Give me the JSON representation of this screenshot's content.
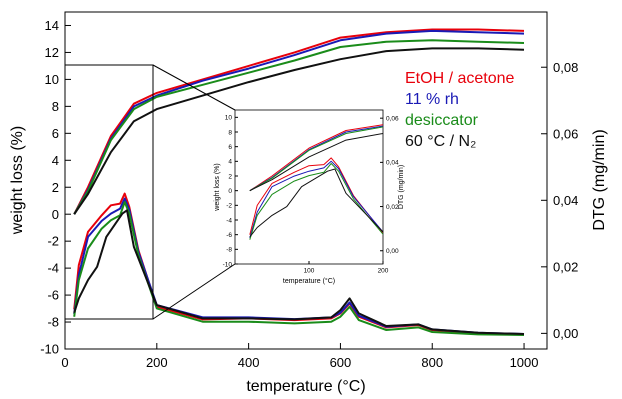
{
  "chart_data": {
    "type": "line",
    "xlabel": "temperature (°C)",
    "ylabel_left": "weight loss (%)",
    "ylabel_right": "DTG (mg/min)",
    "xlim": [
      0,
      1050
    ],
    "ylim_left": [
      -10,
      15
    ],
    "ylim_right": [
      -0.0047,
      0.0966
    ],
    "xticks": [
      "0",
      "200",
      "400",
      "600",
      "800",
      "1000"
    ],
    "yticks_left": [
      "-10",
      "-8",
      "-6",
      "-4",
      "-2",
      "0",
      "2",
      "4",
      "6",
      "8",
      "10",
      "12",
      "14"
    ],
    "yticks_right": [
      "0,00",
      "0,02",
      "0,04",
      "0,06",
      "0,08"
    ],
    "legend_placement": "right",
    "series": [
      {
        "name": "EtOH / acetone",
        "color": "#e8000b",
        "weight_loss": {
          "x": [
            20,
            50,
            100,
            150,
            200,
            300,
            400,
            500,
            600,
            700,
            800,
            900,
            1000
          ],
          "y": [
            0.0,
            2.0,
            5.8,
            8.2,
            9.0,
            10.0,
            11.0,
            12.0,
            13.1,
            13.5,
            13.7,
            13.7,
            13.6
          ]
        },
        "dtg": {
          "x": [
            20,
            30,
            50,
            80,
            100,
            120,
            130,
            140,
            160,
            200,
            300,
            400,
            500,
            580,
            600,
            620,
            640,
            700,
            770,
            800,
            900,
            1000
          ],
          "y": [
            0.0072,
            0.0205,
            0.0305,
            0.0355,
            0.0385,
            0.039,
            0.042,
            0.038,
            0.025,
            0.008,
            0.0042,
            0.0045,
            0.004,
            0.0045,
            0.006,
            0.009,
            0.005,
            0.0018,
            0.0025,
            0.001,
            0.0,
            -0.0003
          ]
        }
      },
      {
        "name": "11 % rh",
        "color": "#1a1ab5",
        "weight_loss": {
          "x": [
            20,
            50,
            100,
            150,
            200,
            300,
            400,
            500,
            600,
            700,
            800,
            900,
            1000
          ],
          "y": [
            0.0,
            1.8,
            5.6,
            8.0,
            8.8,
            9.9,
            10.8,
            11.8,
            12.9,
            13.4,
            13.6,
            13.5,
            13.4
          ]
        },
        "dtg": {
          "x": [
            20,
            30,
            50,
            80,
            100,
            120,
            130,
            140,
            160,
            200,
            300,
            400,
            500,
            580,
            600,
            620,
            640,
            700,
            770,
            800,
            900,
            1000
          ],
          "y": [
            0.0058,
            0.0175,
            0.029,
            0.0338,
            0.036,
            0.0375,
            0.0405,
            0.0372,
            0.0245,
            0.0085,
            0.0048,
            0.0048,
            0.0043,
            0.0048,
            0.0062,
            0.0093,
            0.0053,
            0.002,
            0.0027,
            0.0012,
            0.0002,
            -0.0002
          ]
        }
      },
      {
        "name": "desiccator",
        "color": "#1a8c1a",
        "weight_loss": {
          "x": [
            20,
            50,
            100,
            150,
            200,
            300,
            400,
            500,
            600,
            700,
            800,
            900,
            1000
          ],
          "y": [
            0.0,
            1.7,
            5.5,
            7.8,
            8.7,
            9.6,
            10.5,
            11.4,
            12.4,
            12.8,
            12.9,
            12.8,
            12.7
          ]
        },
        "dtg": {
          "x": [
            20,
            30,
            50,
            80,
            100,
            120,
            130,
            140,
            160,
            200,
            300,
            400,
            500,
            580,
            600,
            620,
            640,
            700,
            770,
            800,
            900,
            1000
          ],
          "y": [
            0.005,
            0.016,
            0.0255,
            0.0315,
            0.034,
            0.0355,
            0.0395,
            0.036,
            0.0235,
            0.0075,
            0.0035,
            0.0035,
            0.003,
            0.0035,
            0.005,
            0.008,
            0.004,
            0.001,
            0.0018,
            0.0004,
            -0.0003,
            -0.0005
          ]
        }
      },
      {
        "name": "60 °C / N₂",
        "color": "#111111",
        "weight_loss": {
          "x": [
            20,
            50,
            100,
            150,
            200,
            300,
            400,
            500,
            600,
            700,
            800,
            900,
            1000
          ],
          "y": [
            0.0,
            1.5,
            4.6,
            6.9,
            7.8,
            8.8,
            9.8,
            10.7,
            11.5,
            12.1,
            12.3,
            12.3,
            12.2
          ]
        },
        "dtg": {
          "x": [
            20,
            30,
            50,
            70,
            90,
            110,
            125,
            135,
            150,
            200,
            300,
            400,
            500,
            580,
            600,
            620,
            640,
            700,
            770,
            800,
            900,
            1000
          ],
          "y": [
            0.0062,
            0.0105,
            0.016,
            0.02,
            0.029,
            0.033,
            0.036,
            0.037,
            0.026,
            0.0085,
            0.0045,
            0.0045,
            0.0042,
            0.0048,
            0.007,
            0.0105,
            0.006,
            0.0022,
            0.0027,
            0.0012,
            0.0002,
            -0.0002
          ]
        }
      }
    ],
    "inset": {
      "xlabel": "temperature (°C)",
      "ylabel_left": "weight loss (%)",
      "ylabel_right": "DTG (mg/min)",
      "xlim": [
        0,
        200
      ],
      "ylim_left": [
        -10,
        11
      ],
      "ylim_right": [
        -0.006,
        0.0637
      ],
      "xticks": [
        "100",
        "200"
      ],
      "yticks_left": [
        "-10",
        "-8",
        "-6",
        "-4",
        "-2",
        "0",
        "2",
        "4",
        "6",
        "8",
        "10"
      ],
      "yticks_right": [
        "0,00",
        "0,02",
        "0,04",
        "0,06"
      ]
    }
  }
}
